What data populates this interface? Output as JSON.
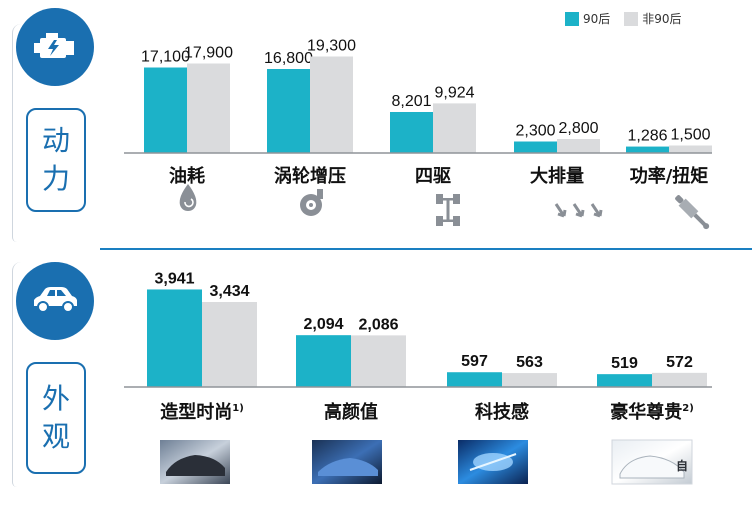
{
  "colors": {
    "series_90": "#1cb2c8",
    "series_non90": "#dadbdd",
    "brand": "#1a6fb0"
  },
  "legend": [
    "90后",
    "非90后"
  ],
  "sections": {
    "power": {
      "title_chars": [
        "动",
        "力"
      ],
      "icon": "engine-icon"
    },
    "appearance": {
      "title_chars": [
        "外",
        "观"
      ],
      "icon": "car-icon"
    }
  },
  "chart_data": [
    {
      "type": "bar",
      "title": "",
      "categories": [
        "油耗",
        "涡轮增压",
        "四驱",
        "大排量",
        "功率/扭矩"
      ],
      "category_icons": [
        "fuel-drop-icon",
        "turbo-icon",
        "drivetrain-icon",
        "exhaust-arrows-icon",
        "shock-absorber-icon"
      ],
      "value_labels": [
        [
          "17,100",
          "17,900"
        ],
        [
          "16,800",
          "19,300"
        ],
        [
          "8,201",
          "9,924"
        ],
        [
          "2,300",
          "2,800"
        ],
        [
          "1,286",
          "1,500"
        ]
      ],
      "series": [
        {
          "name": "90后",
          "values": [
            17100,
            16800,
            8201,
            2300,
            1286
          ]
        },
        {
          "name": "非90后",
          "values": [
            17900,
            19300,
            9924,
            2800,
            1500
          ]
        }
      ],
      "ylim": [
        0,
        20000
      ],
      "legend_position": "top-right"
    },
    {
      "type": "bar",
      "title": "",
      "categories": [
        "造型时尚",
        "高颜值",
        "科技感",
        "豪华尊贵"
      ],
      "category_notes": [
        "1)",
        "",
        "",
        "2)"
      ],
      "category_images": [
        "sports-car-photo",
        "blue-coupe-photo",
        "blue-headlight-photo",
        "white-sedan-photo"
      ],
      "value_labels": [
        [
          "3,941",
          "3,434"
        ],
        [
          "2,094",
          "2,086"
        ],
        [
          "597",
          "563"
        ],
        [
          "519",
          "572"
        ]
      ],
      "series": [
        {
          "name": "90后",
          "values": [
            3941,
            2094,
            597,
            519
          ]
        },
        {
          "name": "非90后",
          "values": [
            3434,
            2086,
            563,
            572
          ]
        }
      ],
      "ylim": [
        0,
        4000
      ]
    }
  ]
}
